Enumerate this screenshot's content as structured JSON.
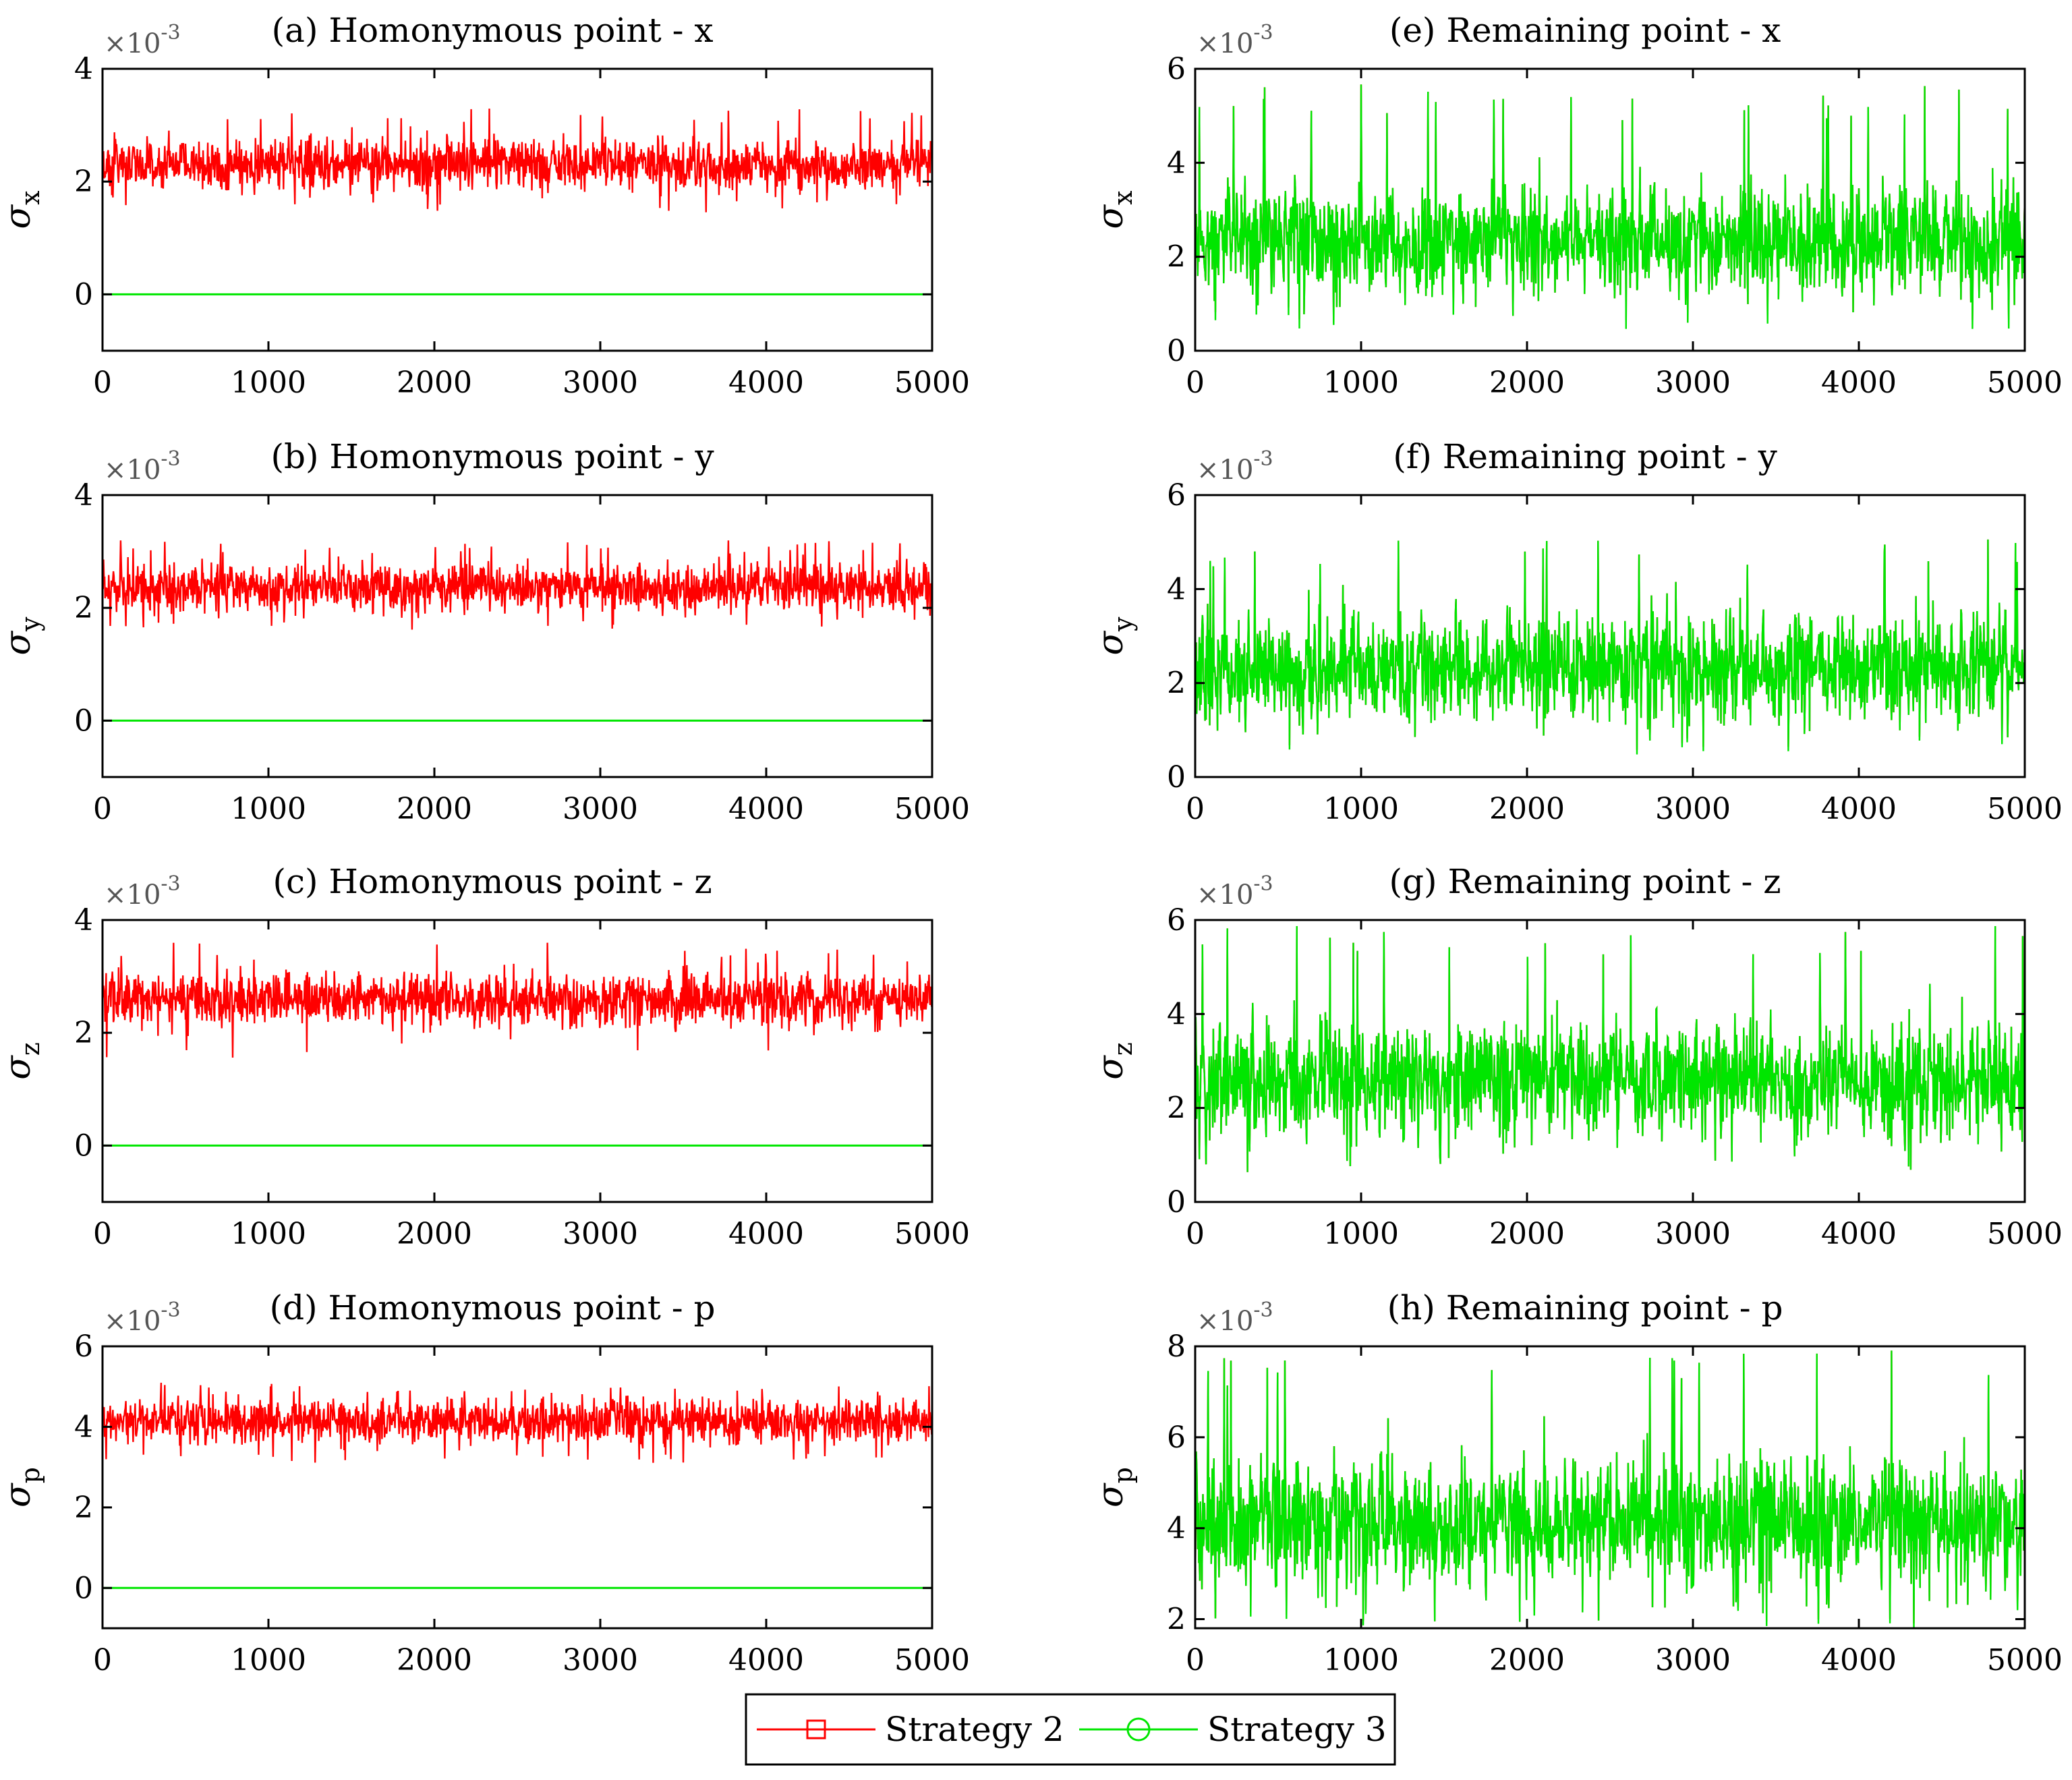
{
  "figure": {
    "legend": {
      "entries": [
        {
          "name": "Strategy 2",
          "color": "#ff0000",
          "marker": "square"
        },
        {
          "name": "Strategy 3",
          "color": "#00e600",
          "marker": "circle"
        }
      ]
    }
  },
  "chart_data": [
    {
      "id": "a",
      "type": "line",
      "title": "(a) Homonymous point - x",
      "ylabel": "σ",
      "ylabel_sub": "x",
      "scale": "×10",
      "scale_exp": "-3",
      "xlim": [
        0,
        5000
      ],
      "ylim": [
        -1,
        4
      ],
      "xticks": [
        0,
        1000,
        2000,
        3000,
        4000,
        5000
      ],
      "yticks": [
        0,
        2,
        4
      ],
      "series": [
        {
          "name": "Strategy 2",
          "color": "#ff0000",
          "mean": 2.3,
          "spread": 0.32,
          "min": 1.45,
          "max": 3.3
        },
        {
          "name": "Strategy 3",
          "color": "#00e600",
          "mean": 0.0,
          "spread": 0.0,
          "min": 0.0,
          "max": 0.0
        }
      ]
    },
    {
      "id": "b",
      "type": "line",
      "title": "(b) Homonymous point - y",
      "ylabel": "σ",
      "ylabel_sub": "y",
      "scale": "×10",
      "scale_exp": "-3",
      "xlim": [
        0,
        5000
      ],
      "ylim": [
        -1,
        4
      ],
      "xticks": [
        0,
        1000,
        2000,
        3000,
        4000,
        5000
      ],
      "yticks": [
        0,
        2,
        4
      ],
      "series": [
        {
          "name": "Strategy 2",
          "color": "#ff0000",
          "mean": 2.35,
          "spread": 0.3,
          "min": 1.6,
          "max": 3.2
        },
        {
          "name": "Strategy 3",
          "color": "#00e600",
          "mean": 0.0,
          "spread": 0.0,
          "min": 0.0,
          "max": 0.0
        }
      ]
    },
    {
      "id": "c",
      "type": "line",
      "title": "(c) Homonymous point - z",
      "ylabel": "σ",
      "ylabel_sub": "z",
      "scale": "×10",
      "scale_exp": "-3",
      "xlim": [
        0,
        5000
      ],
      "ylim": [
        -1,
        4
      ],
      "xticks": [
        0,
        1000,
        2000,
        3000,
        4000,
        5000
      ],
      "yticks": [
        0,
        2,
        4
      ],
      "series": [
        {
          "name": "Strategy 2",
          "color": "#ff0000",
          "mean": 2.6,
          "spread": 0.33,
          "min": 1.5,
          "max": 3.6
        },
        {
          "name": "Strategy 3",
          "color": "#00e600",
          "mean": 0.0,
          "spread": 0.0,
          "min": 0.0,
          "max": 0.0
        }
      ]
    },
    {
      "id": "d",
      "type": "line",
      "title": "(d) Homonymous point - p",
      "ylabel": "σ",
      "ylabel_sub": "p",
      "scale": "×10",
      "scale_exp": "-3",
      "xlim": [
        0,
        5000
      ],
      "ylim": [
        -1,
        6
      ],
      "xticks": [
        0,
        1000,
        2000,
        3000,
        4000,
        5000
      ],
      "yticks": [
        0,
        2,
        4,
        6
      ],
      "series": [
        {
          "name": "Strategy 2",
          "color": "#ff0000",
          "mean": 4.15,
          "spread": 0.38,
          "min": 3.1,
          "max": 5.1
        },
        {
          "name": "Strategy 3",
          "color": "#00e600",
          "mean": 0.0,
          "spread": 0.0,
          "min": 0.0,
          "max": 0.0
        }
      ]
    },
    {
      "id": "e",
      "type": "line",
      "title": "(e) Remaining point - x",
      "ylabel": "σ",
      "ylabel_sub": "x",
      "scale": "×10",
      "scale_exp": "-3",
      "xlim": [
        0,
        5000
      ],
      "ylim": [
        0,
        6
      ],
      "xticks": [
        0,
        1000,
        2000,
        3000,
        4000,
        5000
      ],
      "yticks": [
        0,
        2,
        4,
        6
      ],
      "series": [
        {
          "name": "Strategy 2",
          "color": "#ff0000",
          "mean": 2.3,
          "spread": 0.8,
          "min": 0.6,
          "max": 5.7
        },
        {
          "name": "Strategy 3",
          "color": "#00e600",
          "mean": 2.3,
          "spread": 0.8,
          "min": 0.4,
          "max": 5.7
        }
      ]
    },
    {
      "id": "f",
      "type": "line",
      "title": "(f) Remaining point - y",
      "ylabel": "σ",
      "ylabel_sub": "y",
      "scale": "×10",
      "scale_exp": "-3",
      "xlim": [
        0,
        5000
      ],
      "ylim": [
        0,
        6
      ],
      "xticks": [
        0,
        1000,
        2000,
        3000,
        4000,
        5000
      ],
      "yticks": [
        0,
        2,
        4,
        6
      ],
      "series": [
        {
          "name": "Strategy 2",
          "color": "#ff0000",
          "mean": 2.3,
          "spread": 0.8,
          "min": 0.5,
          "max": 5.2
        },
        {
          "name": "Strategy 3",
          "color": "#00e600",
          "mean": 2.3,
          "spread": 0.8,
          "min": 0.4,
          "max": 5.2
        }
      ]
    },
    {
      "id": "g",
      "type": "line",
      "title": "(g) Remaining point - z",
      "ylabel": "σ",
      "ylabel_sub": "z",
      "scale": "×10",
      "scale_exp": "-3",
      "xlim": [
        0,
        5000
      ],
      "ylim": [
        0,
        6
      ],
      "xticks": [
        0,
        1000,
        2000,
        3000,
        4000,
        5000
      ],
      "yticks": [
        0,
        2,
        4,
        6
      ],
      "series": [
        {
          "name": "Strategy 2",
          "color": "#ff0000",
          "mean": 2.6,
          "spread": 0.85,
          "min": 0.6,
          "max": 5.9
        },
        {
          "name": "Strategy 3",
          "color": "#00e600",
          "mean": 2.6,
          "spread": 0.85,
          "min": 0.6,
          "max": 5.9
        }
      ]
    },
    {
      "id": "h",
      "type": "line",
      "title": "(h) Remaining point - p",
      "ylabel": "σ",
      "ylabel_sub": "p",
      "scale": "×10",
      "scale_exp": "-3",
      "xlim": [
        0,
        5000
      ],
      "ylim": [
        1.8,
        8
      ],
      "xticks": [
        0,
        1000,
        2000,
        3000,
        4000,
        5000
      ],
      "yticks": [
        2,
        4,
        6,
        8
      ],
      "series": [
        {
          "name": "Strategy 2",
          "color": "#ff0000",
          "mean": 4.1,
          "spread": 1.0,
          "min": 1.9,
          "max": 8.0
        },
        {
          "name": "Strategy 3",
          "color": "#00e600",
          "mean": 4.1,
          "spread": 1.0,
          "min": 1.8,
          "max": 8.0
        }
      ]
    }
  ]
}
